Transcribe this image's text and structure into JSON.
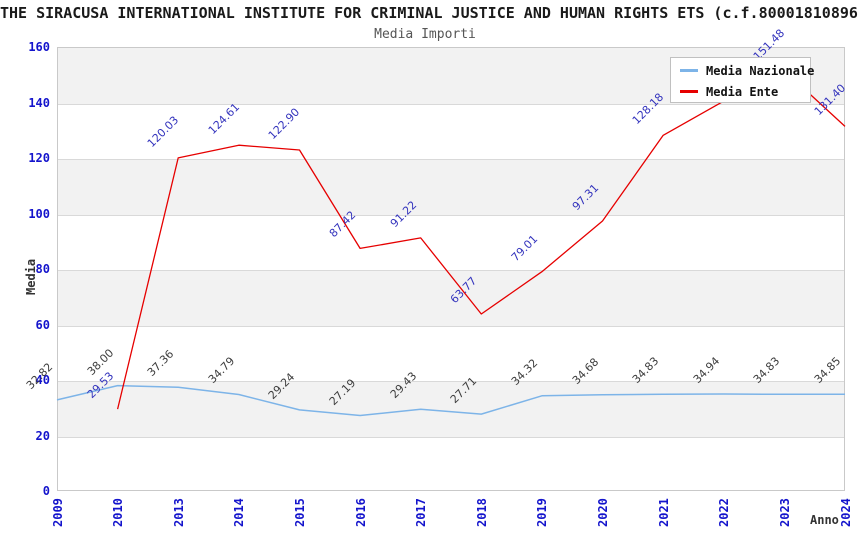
{
  "header": {
    "title": "THE SIRACUSA INTERNATIONAL INSTITUTE FOR CRIMINAL JUSTICE AND HUMAN RIGHTS ETS (c.f.80001810896",
    "subtitle": "Media Importi"
  },
  "chart_data": {
    "type": "line",
    "title": "Media Importi",
    "xlabel": "Anno",
    "ylabel": "Media",
    "ylim": [
      0,
      160
    ],
    "yticks": [
      0,
      20,
      40,
      60,
      80,
      100,
      120,
      140,
      160
    ],
    "grid": "horizontal gridlines every 20 with alternating gray bands",
    "legend_position": "top-right",
    "categories": [
      "2009",
      "2010",
      "2013",
      "2014",
      "2015",
      "2016",
      "2017",
      "2018",
      "2019",
      "2020",
      "2021",
      "2022",
      "2023",
      "2024"
    ],
    "series": [
      {
        "name": "Media Nazionale",
        "color": "#7db4e8",
        "label_color": "#3d3d3d",
        "values": [
          32.82,
          38.0,
          37.36,
          34.79,
          29.24,
          27.19,
          29.43,
          27.71,
          34.32,
          34.68,
          34.83,
          34.94,
          34.83,
          34.85
        ],
        "labels": [
          "32.82",
          "38.00",
          "37.36",
          "34.79",
          "29.24",
          "27.19",
          "29.43",
          "27.71",
          "34.32",
          "34.68",
          "34.83",
          "34.94",
          "34.83",
          "34.85"
        ]
      },
      {
        "name": "Media Ente",
        "color": "#e60000",
        "label_color": "#3434bd",
        "values": [
          null,
          29.53,
          120.03,
          124.61,
          122.9,
          87.42,
          91.22,
          63.77,
          79.01,
          97.31,
          128.18,
          140.5,
          151.48,
          131.4
        ],
        "labels": [
          "",
          "29.53",
          "120.03",
          "124.61",
          "122.90",
          "87.42",
          "91.22",
          "63.77",
          "79.01",
          "97.31",
          "128.18",
          "",
          "151.48",
          "131.40"
        ]
      }
    ]
  },
  "colors": {
    "axis_tick": "#1414cc",
    "band_fill": "#f2f2f2",
    "gridline": "#d9d9d9",
    "plot_border": "#c9c9c9",
    "title": "#1a1a1a",
    "subtitle": "#555555",
    "axis_title": "#333333",
    "legend_border": "#c0c0c0"
  }
}
